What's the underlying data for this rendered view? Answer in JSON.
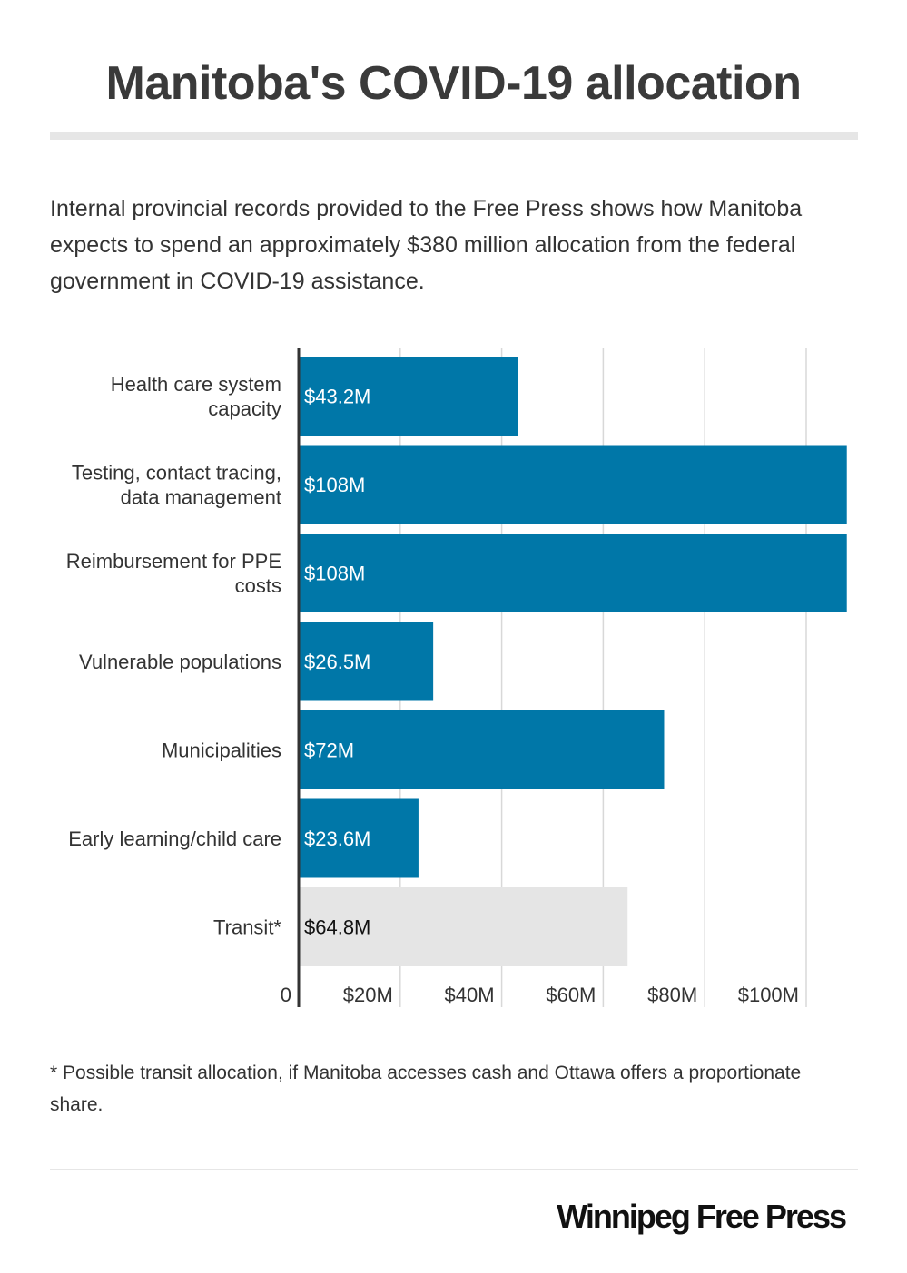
{
  "title": "Manitoba's COVID-19 allocation",
  "description": "Internal provincial records provided to the Free Press shows how Manitoba expects to spend an approximately $380 million allocation from the federal government in COVID-19 assistance.",
  "footnote": "* Possible transit allocation, if Manitoba accesses cash and Ottawa offers a proportionate share.",
  "logo": "Winnipeg Free Press",
  "colors": {
    "bar": "#0077a8",
    "highlight": "#e5e5e5"
  },
  "chart_data": {
    "type": "bar",
    "orientation": "horizontal",
    "categories": [
      [
        "Health care system",
        "capacity"
      ],
      [
        "Testing, contact tracing,",
        "data management"
      ],
      [
        "Reimbursement for PPE",
        "costs"
      ],
      [
        "Vulnerable populations"
      ],
      [
        "Municipalities"
      ],
      [
        "Early learning/child care"
      ],
      [
        "Transit*"
      ]
    ],
    "values": [
      43.2,
      108,
      108,
      26.5,
      72,
      23.6,
      64.8
    ],
    "labels": [
      "$43.2M",
      "$108M",
      "$108M",
      "$26.5M",
      "$72M",
      "$23.6M",
      "$64.8M"
    ],
    "highlight": [
      false,
      false,
      false,
      false,
      false,
      false,
      true
    ],
    "xticks": [
      0,
      20,
      40,
      60,
      80,
      100
    ],
    "xtick_labels": [
      "0",
      "$20M",
      "$40M",
      "$60M",
      "$80M",
      "$100M"
    ],
    "xlim": [
      0,
      108
    ],
    "grid": true
  }
}
